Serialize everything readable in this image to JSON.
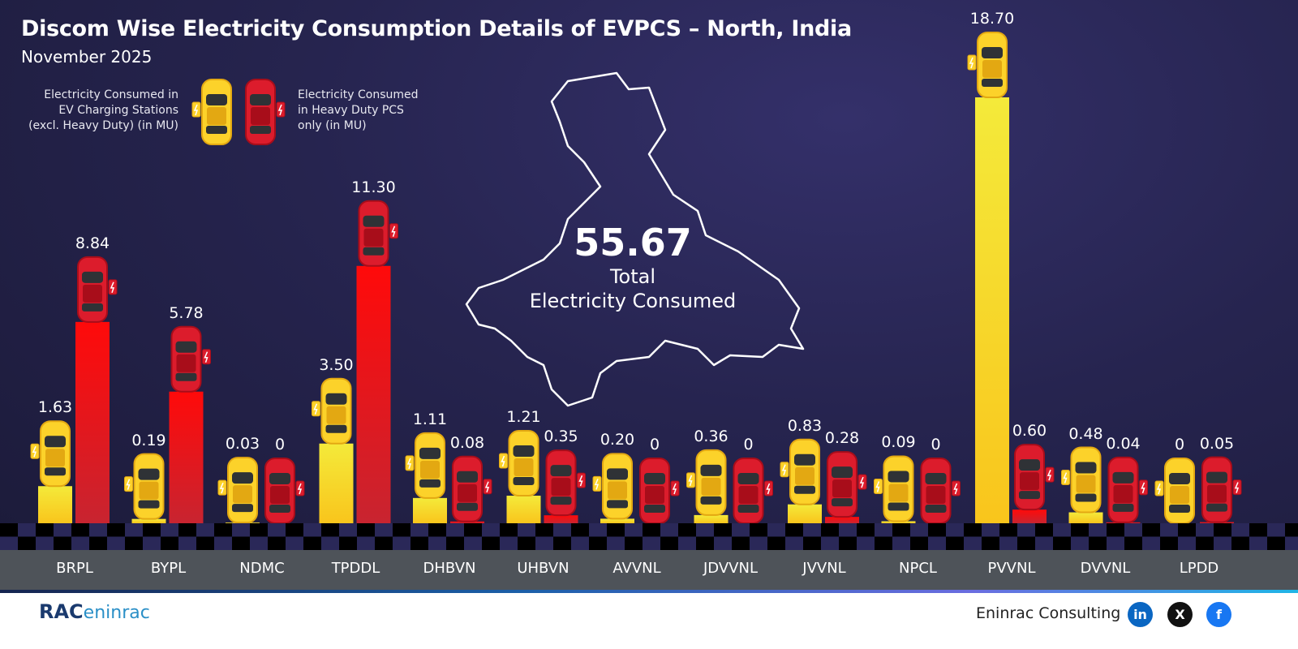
{
  "title": "Discom Wise Electricity Consumption Details of EVPCS – North, India",
  "subtitle": "November 2025",
  "legend": {
    "series1": "Electricity Consumed in EV Charging Stations (excl. Heavy Duty) (in MU)",
    "series2": "Electricity Consumed in Heavy Duty PCS only (in MU)",
    "series1_lines": [
      "Electricity Consumed in",
      "EV Charging Stations",
      "(excl. Heavy Duty) (in MU)"
    ],
    "series2_lines": [
      "Electricity Consumed",
      "in Heavy Duty PCS",
      "only (in MU)"
    ]
  },
  "total": {
    "value": "55.67",
    "label1": "Total",
    "label2": "Electricity Consumed"
  },
  "footer": {
    "brand": "Eninrac Consulting",
    "logo_text": "RAC",
    "logo_sub": "eninrac",
    "social": [
      "in",
      "X",
      "f"
    ]
  },
  "chart_data": {
    "type": "bar",
    "categories": [
      "BRPL",
      "BYPL",
      "NDMC",
      "TPDDL",
      "DHBVN",
      "UHBVN",
      "AVVNL",
      "JDVVNL",
      "JVVNL",
      "NPCL",
      "PVVNL",
      "DVVNL",
      "LPDD"
    ],
    "series": [
      {
        "name": "Electricity Consumed in EV Charging Stations (excl. Heavy Duty) (in MU)",
        "color": "#f5d21c",
        "values": [
          1.63,
          0.19,
          0.03,
          3.5,
          1.11,
          1.21,
          0.2,
          0.36,
          0.83,
          0.09,
          18.7,
          0.48,
          0
        ],
        "labels": [
          "1.63",
          "0.19",
          "0.03",
          "3.50",
          "1.11",
          "1.21",
          "0.20",
          "0.36",
          "0.83",
          "0.09",
          "18.70",
          "0.48",
          "0"
        ]
      },
      {
        "name": "Electricity Consumed in Heavy Duty PCS only (in MU)",
        "color": "#e8141c",
        "values": [
          8.84,
          5.78,
          0,
          11.3,
          0.08,
          0.35,
          0,
          0,
          0.28,
          0,
          0.6,
          0.04,
          0.05
        ],
        "labels": [
          "8.84",
          "5.78",
          "0",
          "11.30",
          "0.08",
          "0.35",
          "0",
          "0",
          "0.28",
          "0",
          "0.60",
          "0.04",
          "0.05"
        ]
      }
    ],
    "ylim": [
      0,
      18.7
    ],
    "grid": false,
    "legend": "top-left"
  }
}
